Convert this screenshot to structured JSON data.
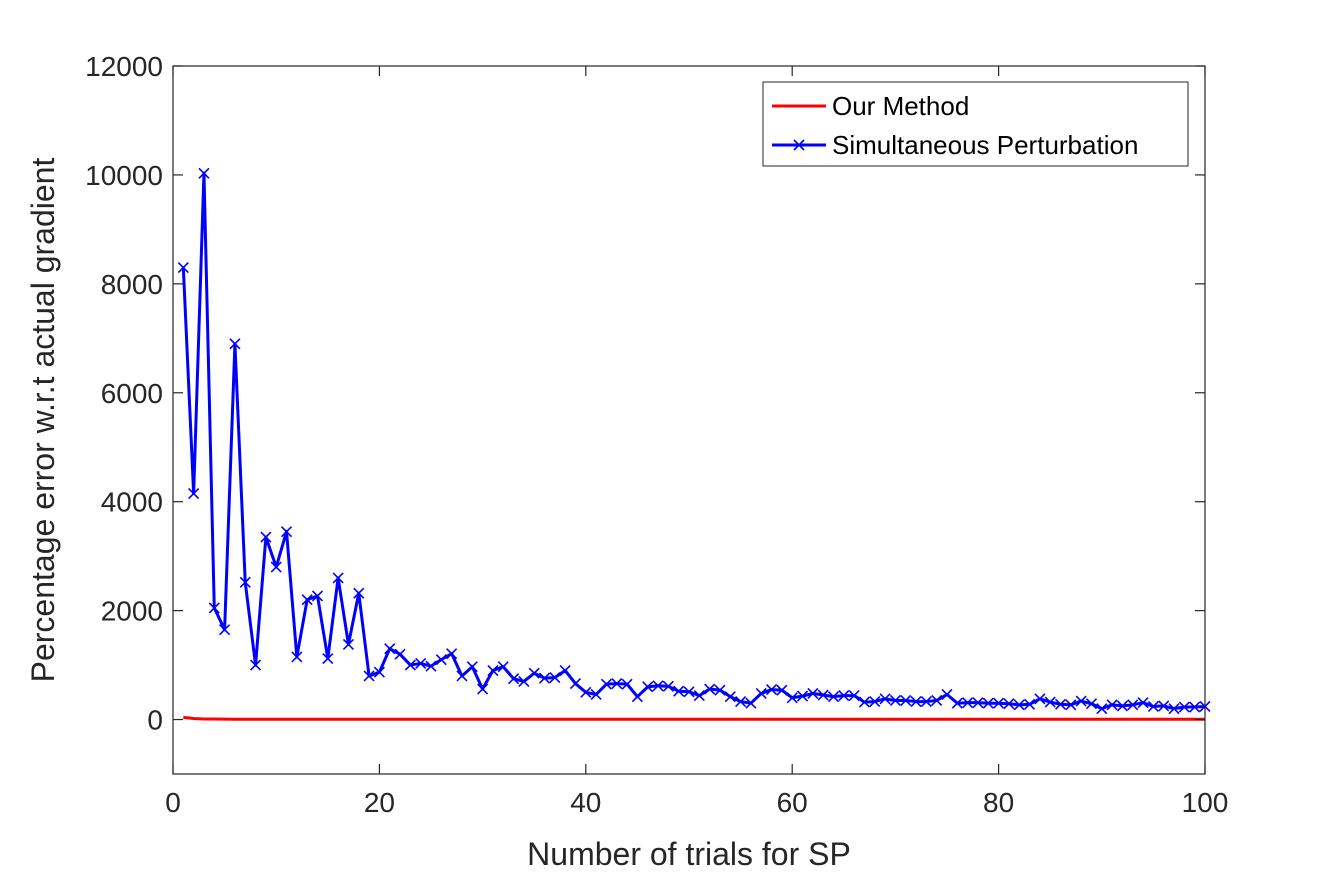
{
  "chart_data": {
    "type": "line",
    "xlabel": "Number of trials for SP",
    "ylabel": "Percentage error w.r.t actual gradient",
    "xlim": [
      0,
      100
    ],
    "ylim": [
      -1000,
      12000
    ],
    "xticks": [
      0,
      20,
      40,
      60,
      80,
      100
    ],
    "yticks": [
      0,
      2000,
      4000,
      6000,
      8000,
      10000,
      12000
    ],
    "grid": false,
    "legend_position": "top-right",
    "series": [
      {
        "name": "Our Method",
        "color": "#ff0000",
        "marker": "none",
        "x": [
          1,
          2,
          3,
          4,
          5,
          6,
          7,
          8,
          9,
          10,
          11,
          12,
          13,
          14,
          15,
          16,
          17,
          18,
          19,
          20,
          21,
          22,
          23,
          24,
          25,
          26,
          27,
          28,
          29,
          30,
          31,
          32,
          33,
          34,
          35,
          36,
          37,
          38,
          39,
          40,
          41,
          42,
          43,
          44,
          45,
          46,
          47,
          48,
          49,
          50,
          51,
          52,
          53,
          54,
          55,
          56,
          57,
          58,
          59,
          60,
          61,
          62,
          63,
          64,
          65,
          66,
          67,
          68,
          69,
          70,
          71,
          72,
          73,
          74,
          75,
          76,
          77,
          78,
          79,
          80,
          81,
          82,
          83,
          84,
          85,
          86,
          87,
          88,
          89,
          90,
          91,
          92,
          93,
          94,
          95,
          96,
          97,
          98,
          99,
          100
        ],
        "values": [
          40,
          20,
          10,
          10,
          8,
          5,
          5,
          5,
          5,
          5,
          5,
          5,
          5,
          5,
          5,
          5,
          5,
          5,
          5,
          5,
          5,
          5,
          5,
          5,
          5,
          5,
          5,
          5,
          5,
          5,
          5,
          5,
          5,
          5,
          5,
          5,
          5,
          5,
          5,
          5,
          5,
          5,
          5,
          5,
          5,
          5,
          5,
          5,
          5,
          5,
          5,
          5,
          5,
          5,
          5,
          5,
          5,
          5,
          5,
          5,
          5,
          5,
          5,
          5,
          5,
          5,
          5,
          5,
          5,
          5,
          5,
          5,
          5,
          5,
          5,
          5,
          5,
          5,
          5,
          5,
          5,
          5,
          5,
          5,
          5,
          5,
          5,
          5,
          5,
          5,
          5,
          5,
          5,
          5,
          5,
          5,
          5,
          5,
          5,
          5
        ]
      },
      {
        "name": "Simultaneous Perturbation",
        "color": "#0000ff",
        "marker": "x",
        "x": [
          1,
          2,
          3,
          4,
          5,
          6,
          7,
          8,
          9,
          10,
          11,
          12,
          13,
          14,
          15,
          16,
          17,
          18,
          19,
          20,
          21,
          22,
          23,
          24,
          25,
          26,
          27,
          28,
          29,
          30,
          31,
          32,
          33,
          34,
          35,
          36,
          37,
          38,
          39,
          40,
          41,
          42,
          43,
          44,
          45,
          46,
          47,
          48,
          49,
          50,
          51,
          52,
          53,
          54,
          55,
          56,
          57,
          58,
          59,
          60,
          61,
          62,
          63,
          64,
          65,
          66,
          67,
          68,
          69,
          70,
          71,
          72,
          73,
          74,
          75,
          76,
          77,
          78,
          79,
          80,
          81,
          82,
          83,
          84,
          85,
          86,
          87,
          88,
          89,
          90,
          91,
          92,
          93,
          94,
          95,
          96,
          97,
          98,
          99,
          100
        ],
        "values": [
          8300,
          4150,
          10030,
          2050,
          1650,
          6900,
          2520,
          1000,
          3350,
          2800,
          3450,
          1150,
          2200,
          2270,
          1120,
          2600,
          1380,
          2320,
          800,
          870,
          1300,
          1200,
          1000,
          1030,
          980,
          1100,
          1210,
          800,
          970,
          560,
          900,
          970,
          750,
          700,
          850,
          760,
          770,
          900,
          660,
          500,
          460,
          650,
          660,
          650,
          420,
          600,
          620,
          610,
          520,
          510,
          440,
          560,
          540,
          420,
          330,
          300,
          480,
          550,
          540,
          400,
          430,
          480,
          450,
          420,
          440,
          440,
          320,
          330,
          380,
          350,
          350,
          330,
          330,
          350,
          460,
          300,
          310,
          310,
          300,
          300,
          290,
          270,
          280,
          380,
          320,
          280,
          270,
          340,
          290,
          200,
          270,
          250,
          270,
          310,
          240,
          250,
          200,
          230,
          230,
          240
        ]
      }
    ]
  }
}
